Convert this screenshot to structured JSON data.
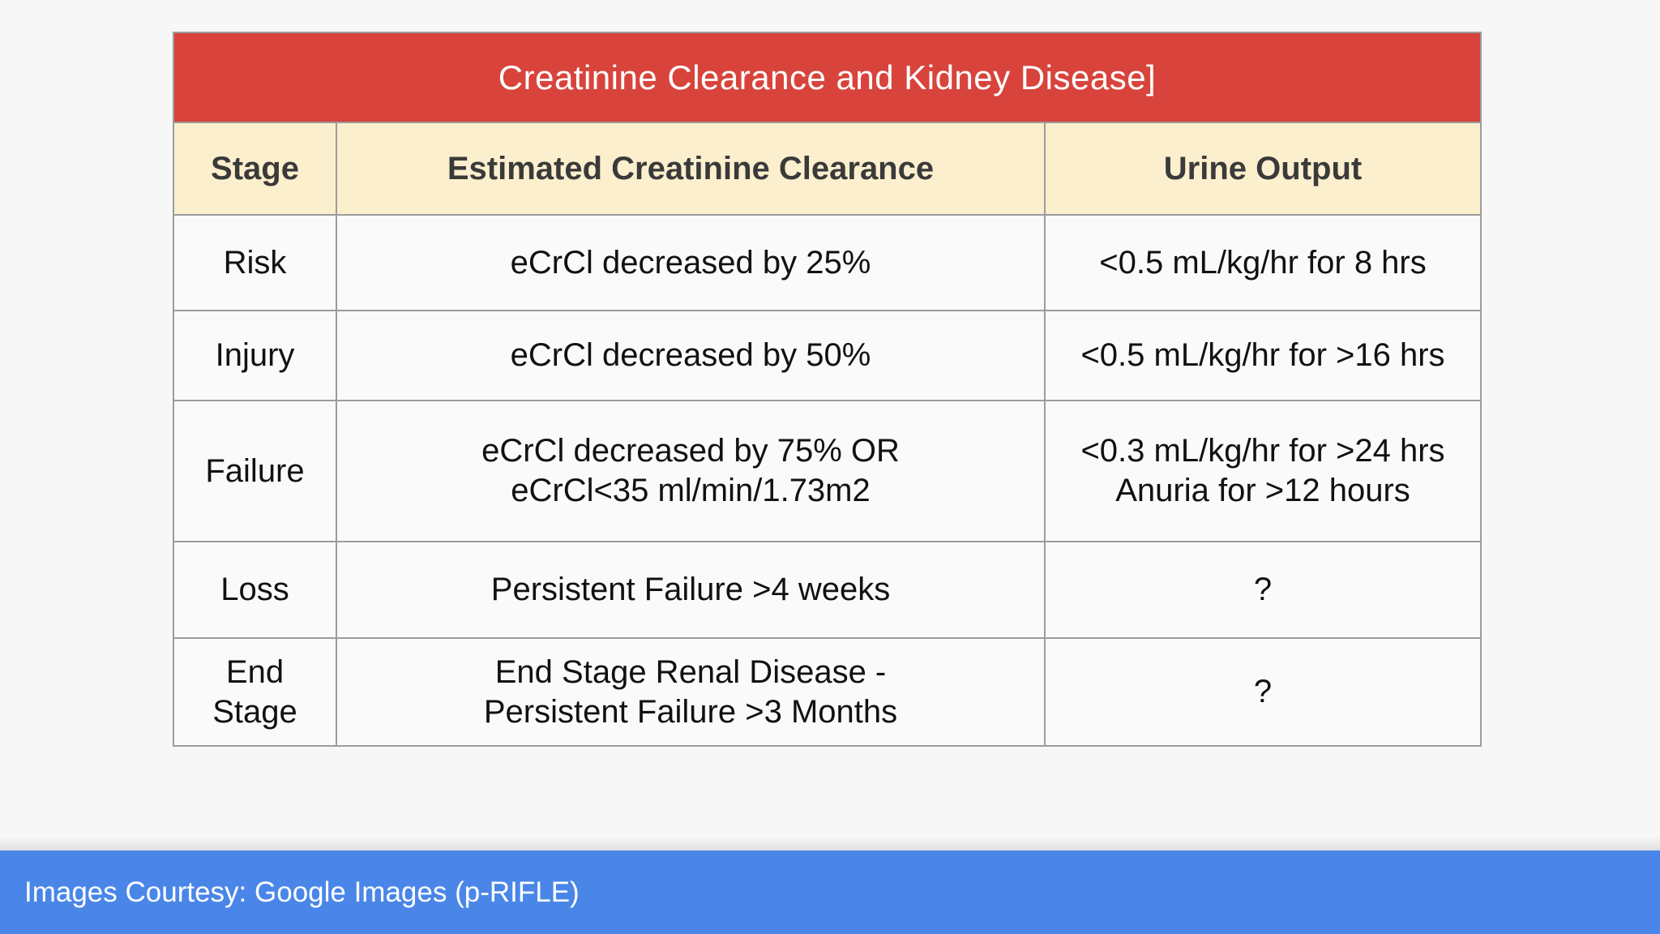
{
  "title": "Creatinine Clearance and Kidney Disease]",
  "table": {
    "columns": [
      "Stage",
      "Estimated Creatinine Clearance",
      "Urine Output"
    ],
    "rows": [
      {
        "stage": "Risk",
        "ecrcl": "eCrCl decreased by 25%",
        "urine": "<0.5 mL/kg/hr for 8 hrs"
      },
      {
        "stage": "Injury",
        "ecrcl": "eCrCl decreased by 50%",
        "urine": "<0.5 mL/kg/hr for >16 hrs"
      },
      {
        "stage": "Failure",
        "ecrcl": "eCrCl decreased by 75% OR\neCrCl<35 ml/min/1.73m2",
        "urine": "<0.3 mL/kg/hr for >24 hrs\nAnuria for >12 hours"
      },
      {
        "stage": "Loss",
        "ecrcl": "Persistent Failure >4 weeks",
        "urine": "?"
      },
      {
        "stage": "End\nStage",
        "ecrcl": "End Stage Renal Disease -\nPersistent Failure >3 Months",
        "urine": "?"
      }
    ]
  },
  "footer": {
    "text": "Images Courtesy: Google Images (p-RIFLE)"
  },
  "colors": {
    "title_bg": "#d8443c",
    "title_text": "#ffffff",
    "header_bg": "#fcefcd",
    "header_text": "#3a3a3a",
    "cell_bg": "#fafafa",
    "body_text": "#111111",
    "border": "#9c9c9c",
    "page_bg": "#f7f7f7",
    "footer_bg": "#4a86e8",
    "footer_text": "#ffffff"
  }
}
